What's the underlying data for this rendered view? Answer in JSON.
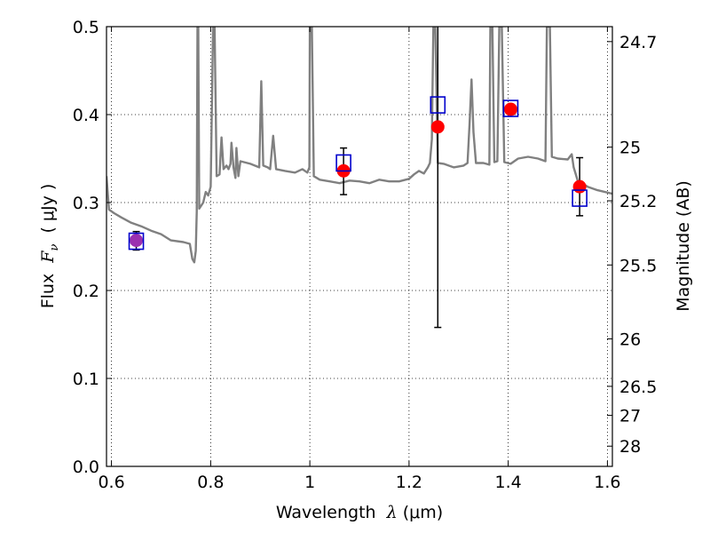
{
  "chart_data": {
    "type": "scatter",
    "xlabel": {
      "prefix": "Wavelength  ",
      "symbol": "λ",
      "unit": " (μm)"
    },
    "ylabel": {
      "prefix": "Flux  ",
      "symbol": "F",
      "subscript": "ν",
      "unit": "  ( μJy )"
    },
    "y2label": "Magnitude (AB)",
    "xlim": [
      0.59,
      1.61
    ],
    "ylim": [
      0.0,
      0.5
    ],
    "x_ticks": [
      {
        "value": 0.6,
        "label": "0.6"
      },
      {
        "value": 0.8,
        "label": "0.8"
      },
      {
        "value": 1.0,
        "label": "1"
      },
      {
        "value": 1.2,
        "label": "1.2"
      },
      {
        "value": 1.4,
        "label": "1.4"
      },
      {
        "value": 1.6,
        "label": "1.6"
      }
    ],
    "y_ticks": [
      {
        "value": 0.0,
        "label": "0.0"
      },
      {
        "value": 0.1,
        "label": "0.1"
      },
      {
        "value": 0.2,
        "label": "0.2"
      },
      {
        "value": 0.3,
        "label": "0.3"
      },
      {
        "value": 0.4,
        "label": "0.4"
      },
      {
        "value": 0.5,
        "label": "0.5"
      }
    ],
    "y2_ticks": [
      {
        "flux": 0.483,
        "label": "24.7"
      },
      {
        "flux": 0.363,
        "label": "25"
      },
      {
        "flux": 0.302,
        "label": "25.2"
      },
      {
        "flux": 0.229,
        "label": "25.5"
      },
      {
        "flux": 0.145,
        "label": "26"
      },
      {
        "flux": 0.091,
        "label": "26.5"
      },
      {
        "flux": 0.058,
        "label": "27"
      },
      {
        "flux": 0.023,
        "label": "28"
      }
    ],
    "grid": true,
    "colors": {
      "model": "#808080",
      "observed": "#ff0000",
      "model_points": "#0000cc",
      "overlap": "#9b30b0",
      "error_bars": "#000000"
    },
    "series": [
      {
        "kind": "model_spectrum",
        "points": [
          [
            0.59,
            0.33
          ],
          [
            0.595,
            0.292
          ],
          [
            0.605,
            0.288
          ],
          [
            0.62,
            0.283
          ],
          [
            0.64,
            0.277
          ],
          [
            0.66,
            0.273
          ],
          [
            0.68,
            0.268
          ],
          [
            0.7,
            0.264
          ],
          [
            0.72,
            0.257
          ],
          [
            0.745,
            0.255
          ],
          [
            0.758,
            0.253
          ],
          [
            0.763,
            0.236
          ],
          [
            0.767,
            0.232
          ],
          [
            0.77,
            0.245
          ],
          [
            0.772,
            0.29
          ],
          [
            0.7735,
            0.5
          ],
          [
            0.775,
            0.5
          ],
          [
            0.777,
            0.293
          ],
          [
            0.785,
            0.3
          ],
          [
            0.79,
            0.312
          ],
          [
            0.795,
            0.308
          ],
          [
            0.8,
            0.318
          ],
          [
            0.805,
            0.5
          ],
          [
            0.808,
            0.5
          ],
          [
            0.812,
            0.33
          ],
          [
            0.818,
            0.332
          ],
          [
            0.822,
            0.374
          ],
          [
            0.826,
            0.338
          ],
          [
            0.832,
            0.342
          ],
          [
            0.836,
            0.338
          ],
          [
            0.84,
            0.344
          ],
          [
            0.842,
            0.368
          ],
          [
            0.846,
            0.34
          ],
          [
            0.85,
            0.328
          ],
          [
            0.852,
            0.362
          ],
          [
            0.856,
            0.33
          ],
          [
            0.86,
            0.347
          ],
          [
            0.88,
            0.344
          ],
          [
            0.898,
            0.34
          ],
          [
            0.902,
            0.438
          ],
          [
            0.906,
            0.342
          ],
          [
            0.915,
            0.34
          ],
          [
            0.92,
            0.338
          ],
          [
            0.926,
            0.376
          ],
          [
            0.932,
            0.338
          ],
          [
            0.95,
            0.336
          ],
          [
            0.97,
            0.334
          ],
          [
            0.985,
            0.338
          ],
          [
            0.995,
            0.334
          ],
          [
            0.999,
            0.34
          ],
          [
            1.0,
            0.5
          ],
          [
            1.004,
            0.5
          ],
          [
            1.008,
            0.33
          ],
          [
            1.02,
            0.326
          ],
          [
            1.04,
            0.324
          ],
          [
            1.06,
            0.322
          ],
          [
            1.08,
            0.325
          ],
          [
            1.1,
            0.324
          ],
          [
            1.12,
            0.322
          ],
          [
            1.14,
            0.326
          ],
          [
            1.16,
            0.324
          ],
          [
            1.18,
            0.324
          ],
          [
            1.2,
            0.327
          ],
          [
            1.21,
            0.332
          ],
          [
            1.22,
            0.336
          ],
          [
            1.23,
            0.333
          ],
          [
            1.238,
            0.34
          ],
          [
            1.242,
            0.345
          ],
          [
            1.246,
            0.372
          ],
          [
            1.249,
            0.5
          ],
          [
            1.253,
            0.5
          ],
          [
            1.258,
            0.345
          ],
          [
            1.27,
            0.344
          ],
          [
            1.29,
            0.34
          ],
          [
            1.31,
            0.342
          ],
          [
            1.318,
            0.345
          ],
          [
            1.322,
            0.39
          ],
          [
            1.326,
            0.44
          ],
          [
            1.33,
            0.38
          ],
          [
            1.335,
            0.345
          ],
          [
            1.35,
            0.345
          ],
          [
            1.362,
            0.343
          ],
          [
            1.364,
            0.5
          ],
          [
            1.368,
            0.5
          ],
          [
            1.372,
            0.346
          ],
          [
            1.378,
            0.347
          ],
          [
            1.382,
            0.5
          ],
          [
            1.387,
            0.5
          ],
          [
            1.392,
            0.346
          ],
          [
            1.405,
            0.344
          ],
          [
            1.42,
            0.35
          ],
          [
            1.44,
            0.352
          ],
          [
            1.46,
            0.35
          ],
          [
            1.475,
            0.347
          ],
          [
            1.478,
            0.5
          ],
          [
            1.484,
            0.5
          ],
          [
            1.488,
            0.352
          ],
          [
            1.5,
            0.35
          ],
          [
            1.52,
            0.349
          ],
          [
            1.528,
            0.355
          ],
          [
            1.532,
            0.34
          ],
          [
            1.54,
            0.325
          ],
          [
            1.56,
            0.318
          ],
          [
            1.58,
            0.314
          ],
          [
            1.61,
            0.31
          ]
        ]
      },
      {
        "kind": "observed",
        "points": [
          {
            "x": 0.65,
            "y": 0.257,
            "yerr_low": 0.246,
            "yerr_high": 0.267
          },
          {
            "x": 1.068,
            "y": 0.336,
            "yerr_low": 0.309,
            "yerr_high": 0.362
          },
          {
            "x": 1.258,
            "y": 0.386,
            "yerr_low": 0.158,
            "yerr_high": 0.5
          },
          {
            "x": 1.405,
            "y": 0.406
          },
          {
            "x": 1.544,
            "y": 0.318,
            "yerr_low": 0.285,
            "yerr_high": 0.351
          }
        ]
      },
      {
        "kind": "model_photometry",
        "points": [
          {
            "x": 0.65,
            "y": 0.256
          },
          {
            "x": 1.068,
            "y": 0.345
          },
          {
            "x": 1.258,
            "y": 0.411
          },
          {
            "x": 1.405,
            "y": 0.407
          },
          {
            "x": 1.544,
            "y": 0.305
          }
        ]
      }
    ]
  }
}
